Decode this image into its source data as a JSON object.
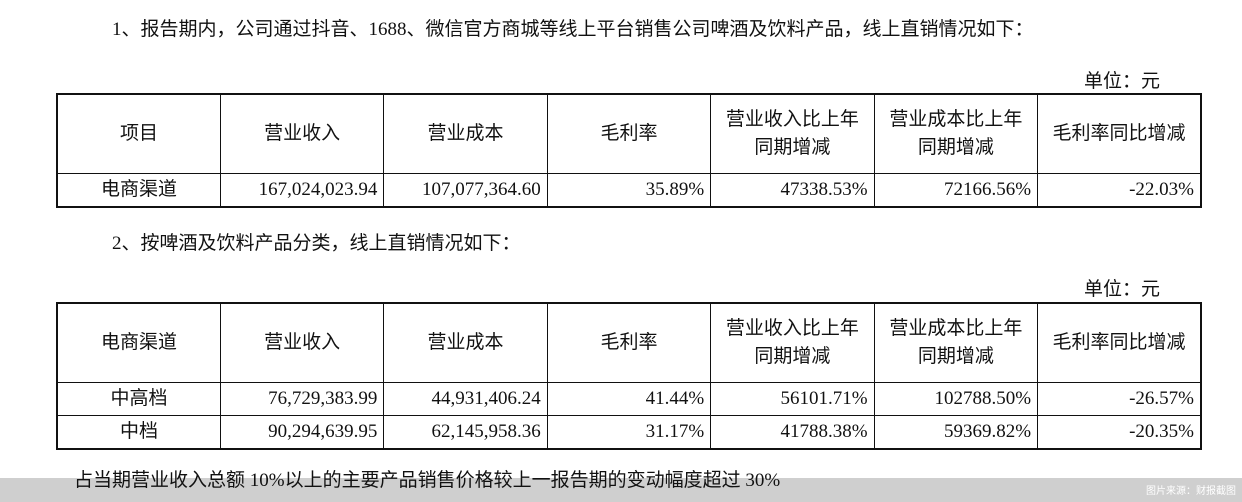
{
  "section1": {
    "heading": "1、报告期内，公司通过抖音、1688、微信官方商城等线上平台销售公司啤酒及饮料产品，线上直销情况如下：",
    "unit": "单位：元",
    "headers": [
      "项目",
      "营业收入",
      "营业成本",
      "毛利率",
      "营业收入比上年同期增减",
      "营业成本比上年同期增减",
      "毛利率同比增减"
    ],
    "rows": [
      [
        "电商渠道",
        "167,024,023.94",
        "107,077,364.60",
        "35.89%",
        "47338.53%",
        "72166.56%",
        "-22.03%"
      ]
    ]
  },
  "section2": {
    "heading": "2、按啤酒及饮料产品分类，线上直销情况如下：",
    "unit": "单位：元",
    "headers": [
      "电商渠道",
      "营业收入",
      "营业成本",
      "毛利率",
      "营业收入比上年同期增减",
      "营业成本比上年同期增减",
      "毛利率同比增减"
    ],
    "rows": [
      [
        "中高档",
        "76,729,383.99",
        "44,931,406.24",
        "41.44%",
        "56101.71%",
        "102788.50%",
        "-26.57%"
      ],
      [
        "中档",
        "90,294,639.95",
        "62,145,958.36",
        "31.17%",
        "41788.38%",
        "59369.82%",
        "-20.35%"
      ]
    ]
  },
  "footer": {
    "note": "占当期营业收入总额 10%以上的主要产品销售价格较上一报告期的变动幅度超过 30%",
    "watermark": "图片来源：财报截图"
  }
}
